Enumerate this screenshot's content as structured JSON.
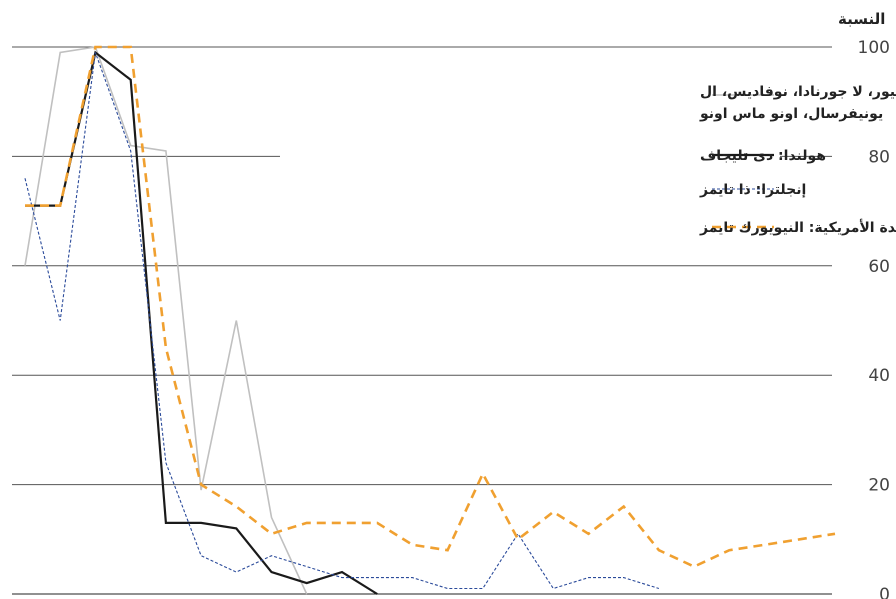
{
  "chart_data": {
    "type": "line",
    "title": "",
    "ylabel": "النسبة",
    "xlabel": "",
    "ylim": [
      0,
      100
    ],
    "yticks": [
      0,
      20,
      40,
      60,
      80,
      100
    ],
    "grid": "horizontal",
    "legend_position": "top-left",
    "x": [
      1,
      2,
      3,
      4,
      5,
      6,
      7,
      8,
      9,
      10,
      11,
      12,
      13,
      14,
      15,
      16,
      17,
      18,
      19,
      20,
      21,
      22,
      23,
      24
    ],
    "series": [
      {
        "name": "المكسيك: الديا، اكسلسيور، لا جورنادا، نوفاديس، ال يونيفرسال، اونو ماس اونو",
        "legend_lines": [
          "المكسيك: الديا، اكسلسيور، لا جورنادا، نوفاديس، ال",
          "يونيفرسال، اونو ماس اونو"
        ],
        "color": "#c0c0c0",
        "dash": "solid",
        "values": [
          60,
          99,
          100,
          82,
          81,
          19,
          50,
          14,
          0,
          null,
          null,
          null,
          null,
          null,
          null,
          null,
          null,
          null,
          null,
          null,
          null,
          null,
          null,
          null
        ]
      },
      {
        "name": "هولندا: دى تليجاف",
        "legend_lines": [
          "هولندا: دى تليجاف"
        ],
        "color": "#1a1a1a",
        "dash": "solid",
        "values": [
          71,
          71,
          99,
          94,
          13,
          13,
          12,
          4,
          2,
          4,
          0,
          null,
          null,
          null,
          null,
          null,
          null,
          null,
          null,
          null,
          null,
          null,
          null,
          null
        ]
      },
      {
        "name": "إنجلترا: ذا تايمز",
        "legend_lines": [
          "إنجلترا: ذا تايمز"
        ],
        "color": "#2a4a9a",
        "dash": "dotted",
        "values": [
          76,
          50,
          99,
          81,
          24,
          7,
          4,
          7,
          5,
          3,
          3,
          3,
          1,
          1,
          11,
          1,
          3,
          3,
          1,
          null,
          null,
          null,
          null,
          null
        ]
      },
      {
        "name": "الولايات المتحدة الأمريكية: النيويورك تايمز",
        "legend_lines": [
          "الولايات المتحدة الأمريكية: النيويورك تايمز"
        ],
        "color": "#f0a030",
        "dash": "dashed",
        "values": [
          71,
          71,
          100,
          100,
          45,
          20,
          16,
          11,
          13,
          13,
          13,
          9,
          8,
          22,
          10,
          15,
          11,
          16,
          8,
          5,
          8,
          9,
          10,
          11
        ]
      }
    ]
  }
}
